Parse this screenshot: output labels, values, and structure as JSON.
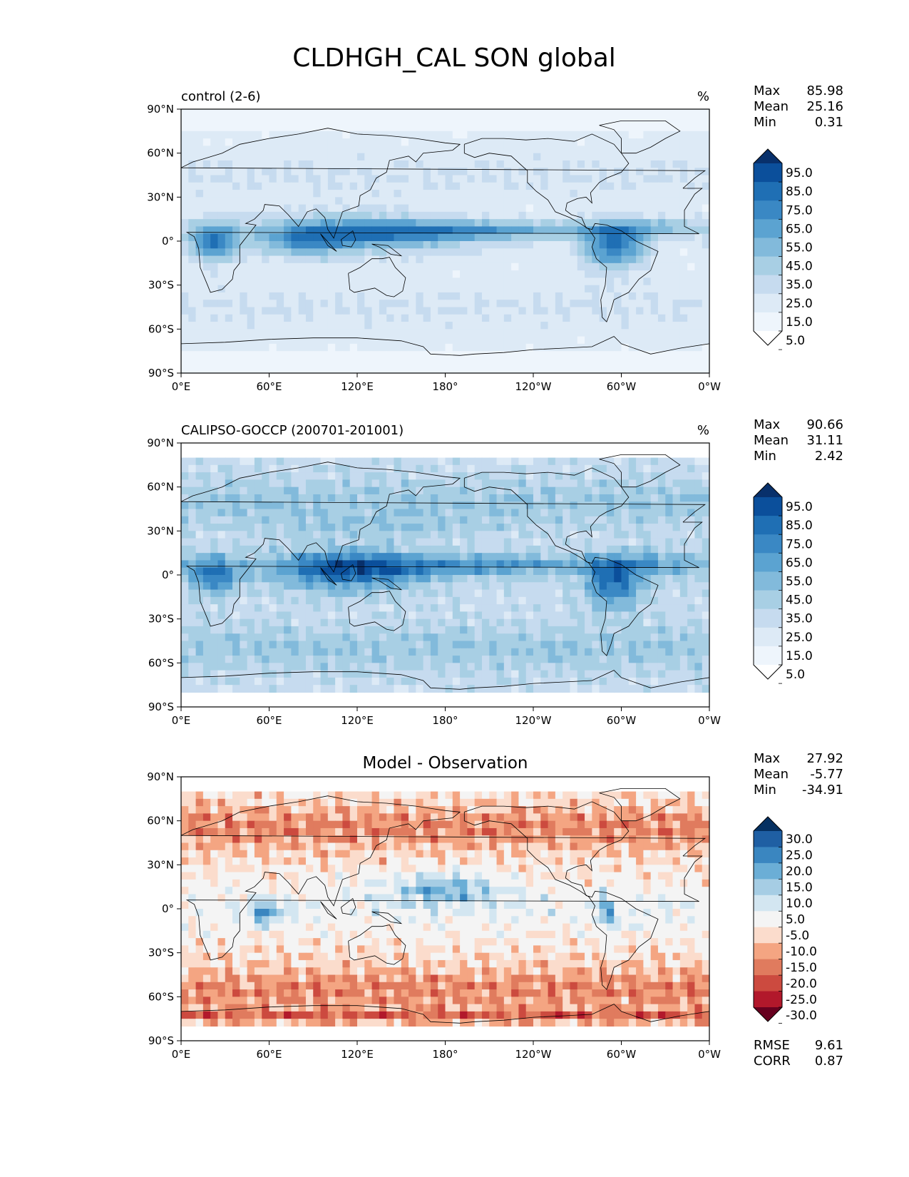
{
  "figure": {
    "title": "CLDHGH_CAL SON global"
  },
  "chart_data": [
    {
      "type": "heatmap",
      "title": "control (2-6)",
      "units": "%",
      "stats": {
        "max": "85.98",
        "mean": "25.16",
        "min": "0.31"
      },
      "x_ticks": [
        "0°E",
        "60°E",
        "120°E",
        "180°",
        "120°W",
        "60°W",
        "0°W"
      ],
      "y_ticks": [
        "90°N",
        "60°N",
        "30°N",
        "0°",
        "30°S",
        "60°S",
        "90°S"
      ],
      "xlim": [
        0,
        360
      ],
      "ylim": [
        -90,
        90
      ],
      "lat_coverage": [
        -90,
        90
      ],
      "colorbar": {
        "labels": [
          "95.0",
          "85.0",
          "75.0",
          "65.0",
          "55.0",
          "45.0",
          "35.0",
          "25.0",
          "15.0",
          "5.0"
        ],
        "colors": [
          "#08306b",
          "#0b4f9b",
          "#1f6fb4",
          "#3a88c4",
          "#5ba3d1",
          "#82badb",
          "#a8cfe4",
          "#c6dbef",
          "#ddeaf6",
          "#eef5fc",
          "#ffffff"
        ],
        "extend": "both"
      }
    },
    {
      "type": "heatmap",
      "title": "CALIPSO-GOCCP (200701-201001)",
      "units": "%",
      "stats": {
        "max": "90.66",
        "mean": "31.11",
        "min": "2.42"
      },
      "x_ticks": [
        "0°E",
        "60°E",
        "120°E",
        "180°",
        "120°W",
        "60°W",
        "0°W"
      ],
      "y_ticks": [
        "90°N",
        "60°N",
        "30°N",
        "0°",
        "30°S",
        "60°S",
        "90°S"
      ],
      "xlim": [
        0,
        360
      ],
      "ylim": [
        -90,
        90
      ],
      "lat_coverage": [
        -82,
        82
      ],
      "colorbar": {
        "labels": [
          "95.0",
          "85.0",
          "75.0",
          "65.0",
          "55.0",
          "45.0",
          "35.0",
          "25.0",
          "15.0",
          "5.0"
        ],
        "colors": [
          "#08306b",
          "#0b4f9b",
          "#1f6fb4",
          "#3a88c4",
          "#5ba3d1",
          "#82badb",
          "#a8cfe4",
          "#c6dbef",
          "#ddeaf6",
          "#eef5fc",
          "#ffffff"
        ],
        "extend": "both"
      }
    },
    {
      "type": "heatmap",
      "title": "Model - Observation",
      "units": "",
      "stats": {
        "max": "27.92",
        "mean": "-5.77",
        "min": "-34.91"
      },
      "metrics": {
        "rmse": "9.61",
        "corr": "0.87"
      },
      "x_ticks": [
        "0°E",
        "60°E",
        "120°E",
        "180°",
        "120°W",
        "60°W",
        "0°W"
      ],
      "y_ticks": [
        "90°N",
        "60°N",
        "30°N",
        "0°",
        "30°S",
        "60°S",
        "90°S"
      ],
      "xlim": [
        0,
        360
      ],
      "ylim": [
        -90,
        90
      ],
      "lat_coverage": [
        -82,
        82
      ],
      "colorbar": {
        "labels": [
          "30.0",
          "25.0",
          "20.0",
          "15.0",
          "10.0",
          "5.0",
          "-5.0",
          "-10.0",
          "-15.0",
          "-20.0",
          "-25.0",
          "-30.0"
        ],
        "colors": [
          "#053061",
          "#1f5fa3",
          "#3a86c0",
          "#6baed6",
          "#a6cde4",
          "#d3e6f1",
          "#f4f4f4",
          "#fbdccc",
          "#f4a582",
          "#e07b5e",
          "#cc4a3f",
          "#b2182b",
          "#67001f"
        ],
        "extend": "both"
      }
    }
  ],
  "labels": {
    "max": "Max",
    "mean": "Mean",
    "min": "Min",
    "rmse": "RMSE",
    "corr": "CORR"
  }
}
